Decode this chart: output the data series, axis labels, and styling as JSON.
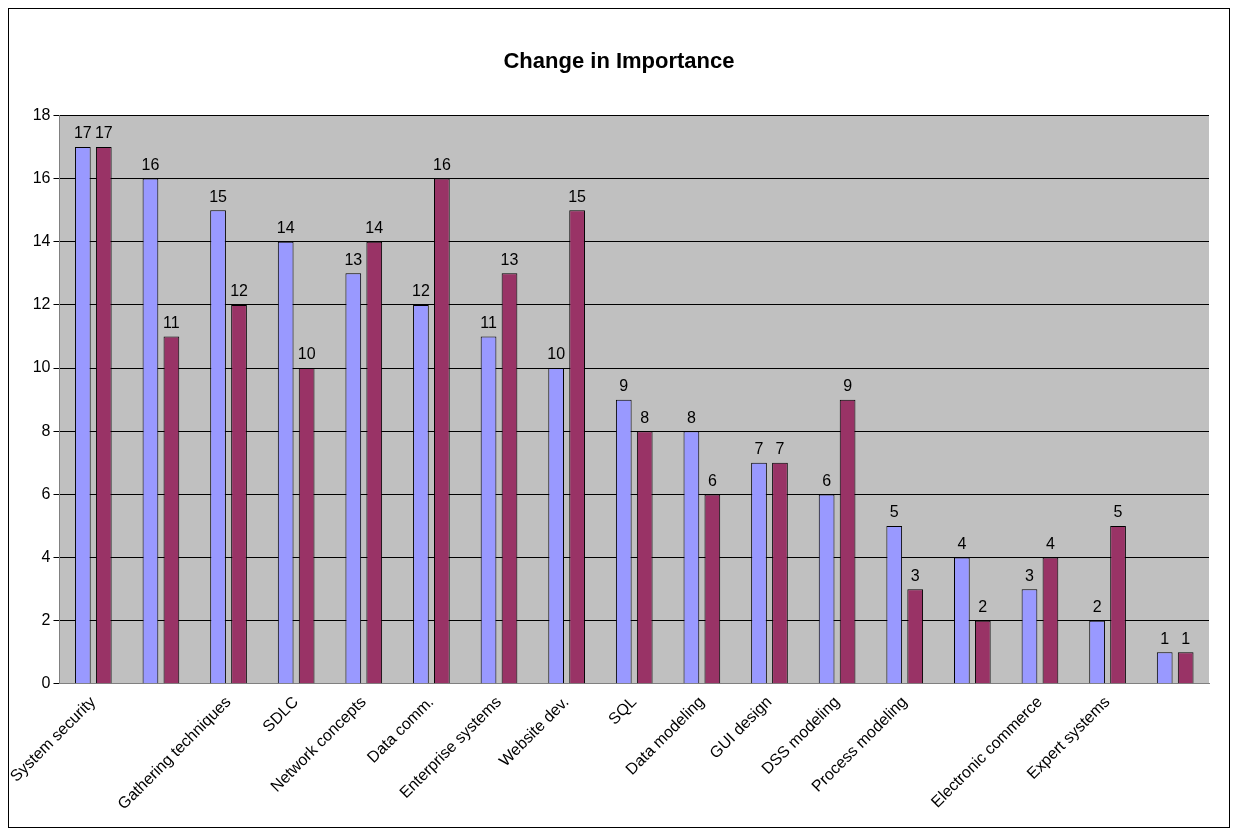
{
  "chart_data": {
    "type": "bar",
    "title": "Change in Importance",
    "categories": [
      "System security",
      null,
      "Gathering techniques",
      "SDLC",
      "Network concepts",
      "Data comm.",
      "Enterprise systems",
      "Website dev.",
      "SQL",
      "Data modeling",
      "GUI design",
      "DSS modeling",
      "Process modeling",
      null,
      "Electronic commerce",
      "Expert systems",
      null
    ],
    "series": [
      {
        "color": "#9999ff",
        "values": [
          17,
          16,
          15,
          14,
          13,
          12,
          11,
          10,
          9,
          8,
          7,
          6,
          5,
          4,
          3,
          2,
          1
        ]
      },
      {
        "color": "#993366",
        "values": [
          17,
          11,
          12,
          10,
          14,
          16,
          13,
          15,
          8,
          6,
          7,
          9,
          3,
          2,
          4,
          5,
          1
        ]
      }
    ],
    "ylim": [
      0,
      18
    ],
    "yticks": [
      0,
      2,
      4,
      6,
      8,
      10,
      12,
      14,
      16,
      18
    ],
    "grid": "y",
    "legend": false,
    "data_labels": true
  }
}
